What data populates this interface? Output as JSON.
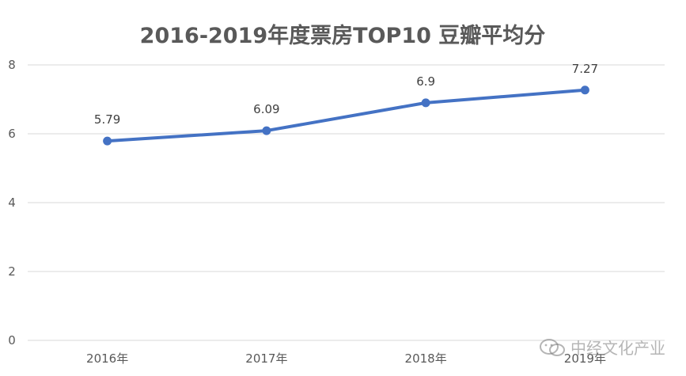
{
  "chart_data": {
    "type": "line",
    "title": "2016-2019年度票房TOP10 豆瓣平均分",
    "categories": [
      "2016年",
      "2017年",
      "2018年",
      "2019年"
    ],
    "series": [
      {
        "values": [
          5.79,
          6.09,
          6.9,
          7.27
        ],
        "color": "#4472c4"
      }
    ],
    "data_labels": [
      "5.79",
      "6.09",
      "6.9",
      "7.27"
    ],
    "ylim": [
      0,
      8
    ],
    "yticks": [
      0,
      2,
      4,
      6,
      8
    ],
    "ytick_labels": [
      "0",
      "2",
      "4",
      "6",
      "8"
    ],
    "grid": true,
    "legend": "none"
  },
  "watermark": {
    "text": "中经文化产业",
    "icon": "wechat-icon"
  }
}
